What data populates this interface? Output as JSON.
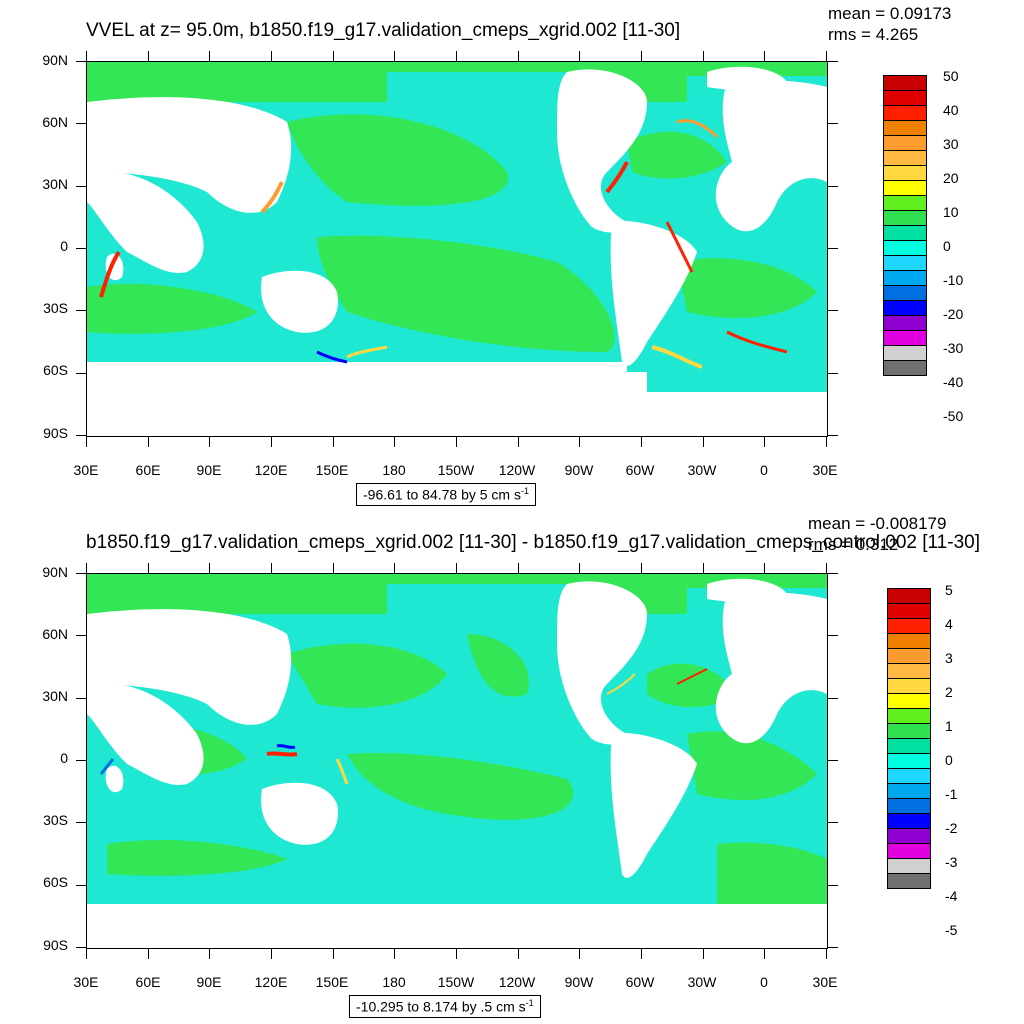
{
  "top": {
    "title": "VVEL at z=  95.0m, b1850.f19_g17.validation_cmeps_xgrid.002 [11-30]",
    "mean": "mean = 0.09173",
    "rms": "rms = 4.265",
    "range": "-96.61 to 84.78 by 5 cm s",
    "range_sup": "-1",
    "colorbar_labels": [
      "50",
      "40",
      "30",
      "20",
      "10",
      "0",
      "-10",
      "-20",
      "-30",
      "-40",
      "-50"
    ]
  },
  "bottom": {
    "title": "b1850.f19_g17.validation_cmeps_xgrid.002 [11-30] - b1850.f19_g17.validation_cmeps_control.002 [11-30]",
    "mean": "mean = -0.008179",
    "rms": "rms = 0.312",
    "range": "-10.295 to 8.174 by .5 cm s",
    "range_sup": "-1",
    "colorbar_labels": [
      "5",
      "4",
      "3",
      "2",
      "1",
      "0",
      "-1",
      "-2",
      "-3",
      "-4",
      "-5"
    ]
  },
  "axes": {
    "lat_labels": [
      "90N",
      "60N",
      "30N",
      "0",
      "30S",
      "60S",
      "90S"
    ],
    "lon_labels": [
      "30E",
      "60E",
      "90E",
      "120E",
      "150E",
      "180",
      "150W",
      "120W",
      "90W",
      "60W",
      "30W",
      "0",
      "30E"
    ]
  },
  "colors": {
    "palette": [
      "#c90000",
      "#e00000",
      "#ff2000",
      "#f08000",
      "#ff9c30",
      "#ffb840",
      "#ffd840",
      "#ffff00",
      "#60f020",
      "#30e050",
      "#00e0a0",
      "#00ffe0",
      "#20d8ff",
      "#00a8f0",
      "#0070e0",
      "#0000ff",
      "#9000d0",
      "#e000e0",
      "#d0d0d0",
      "#707070"
    ],
    "ocean_green": "#33e655",
    "ocean_cyan": "#1ee8d2",
    "ocean_teal": "#22f0c0"
  }
}
